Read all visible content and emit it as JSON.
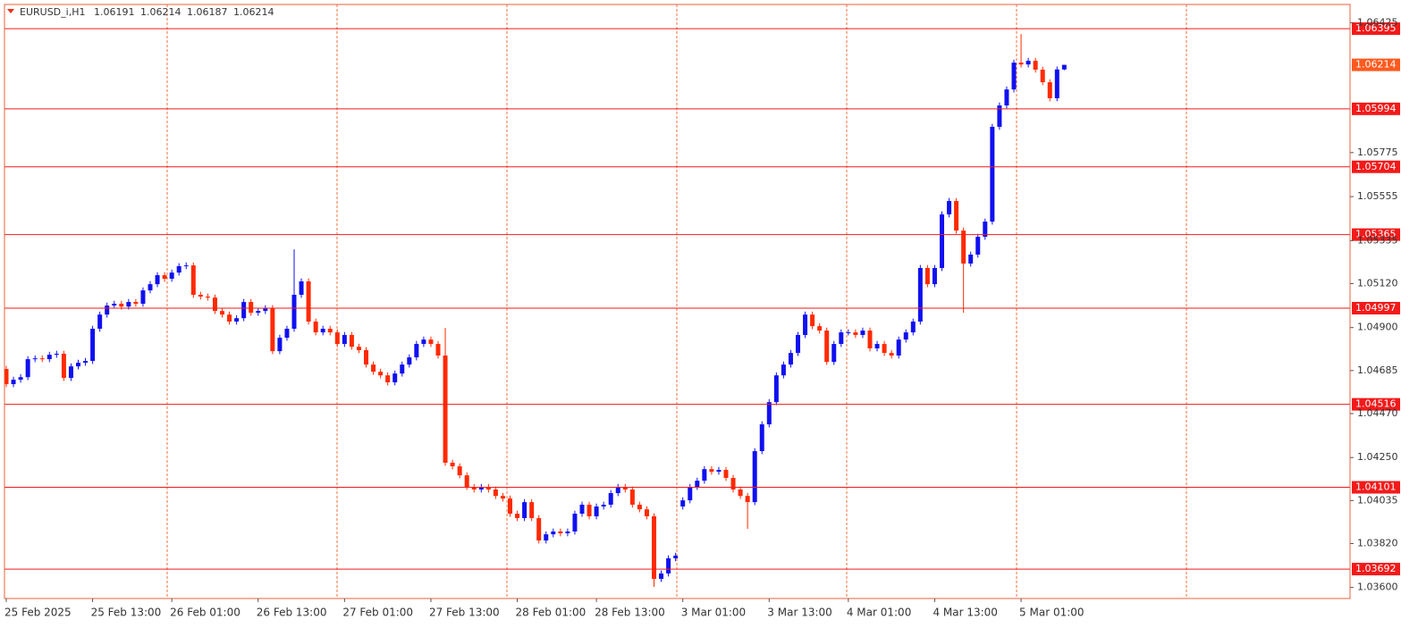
{
  "chart_data": {
    "type": "candlestick",
    "symbol": "EURUSD_i,H1",
    "bull_color": "#1010f0",
    "bear_color": "#ff2a00",
    "level_color": "#f21a1a",
    "last_price_color": "#ff5a1f",
    "separator_color": "#f0703c",
    "ylim": [
      1.03545,
      1.06516
    ],
    "yticks": [
      1.06425,
      1.05775,
      1.05555,
      1.05335,
      {
        "value": 1.0512,
        "label": "1.05120"
      },
      {
        "value": 1.049,
        "label": "1.04900"
      },
      1.04685,
      {
        "value": 1.0447,
        "label": "1.04470"
      },
      {
        "value": 1.0425,
        "label": "1.04250"
      },
      1.04035,
      {
        "value": 1.0382,
        "label": "1.03820"
      },
      {
        "value": 1.036,
        "label": "1.03600"
      }
    ],
    "levels": [
      1.06395,
      1.05994,
      1.05704,
      1.05365,
      1.04997,
      1.04516,
      1.04101,
      1.03692
    ],
    "categories": [
      "25 Feb 2025",
      null,
      null,
      null,
      null,
      null,
      null,
      null,
      null,
      null,
      null,
      null,
      "25 Feb 13:00",
      null,
      null,
      null,
      null,
      null,
      null,
      null,
      null,
      null,
      null,
      "26 Feb 01:00",
      null,
      null,
      null,
      null,
      null,
      null,
      null,
      null,
      null,
      null,
      null,
      "26 Feb 13:00",
      null,
      null,
      null,
      null,
      null,
      null,
      null,
      null,
      null,
      null,
      null,
      "27 Feb 01:00",
      null,
      null,
      null,
      null,
      null,
      null,
      null,
      null,
      null,
      null,
      null,
      "27 Feb 13:00",
      null,
      null,
      null,
      null,
      null,
      null,
      null,
      null,
      null,
      null,
      null,
      "28 Feb 01:00",
      null,
      null,
      null,
      null,
      null,
      null,
      null,
      null,
      null,
      null,
      "28 Feb 13:00",
      null,
      null,
      null,
      null,
      null,
      null,
      null,
      null,
      null,
      null,
      null,
      "3 Mar 01:00",
      null,
      null,
      null,
      null,
      null,
      null,
      null,
      null,
      null,
      null,
      null,
      "3 Mar 13:00",
      null,
      null,
      null,
      null,
      null,
      null,
      null,
      null,
      null,
      null,
      "4 Mar 01:00",
      null,
      null,
      null,
      null,
      null,
      null,
      null,
      null,
      null,
      null,
      null,
      "4 Mar 13:00",
      null,
      null,
      null,
      null,
      null,
      null,
      null,
      null,
      null,
      null,
      null,
      "5 Mar 01:00",
      null,
      null,
      null,
      null,
      null,
      null
    ],
    "open": [
      1.04693,
      1.04617,
      1.04639,
      1.04652,
      1.04742,
      1.04746,
      1.04742,
      1.04764,
      1.04769,
      1.04648,
      1.04706,
      1.04724,
      1.04733,
      1.04894,
      1.04965,
      1.0501,
      1.05019,
      1.05005,
      1.05028,
      1.05019,
      1.05086,
      1.05117,
      1.05162,
      1.05144,
      1.05175,
      1.05207,
      1.05211,
      1.05064,
      1.05055,
      1.0505,
      1.04983,
      1.04965,
      1.0493,
      1.04947,
      1.05028,
      1.04974,
      1.04983,
      1.04997,
      1.04782,
      1.04849,
      1.04894,
      1.05064,
      1.05131,
      1.0493,
      1.04876,
      1.04894,
      1.04876,
      1.04818,
      1.04863,
      1.04804,
      1.04787,
      1.04715,
      1.04679,
      1.04661,
      1.04626,
      1.0467,
      1.04715,
      1.04751,
      1.04818,
      1.0484,
      1.04818,
      1.0476,
      1.04224,
      1.04206,
      1.04161,
      1.04103,
      1.0409,
      1.04103,
      1.0409,
      1.04058,
      1.04045,
      1.03969,
      1.03947,
      1.04027,
      1.03947,
      1.03835,
      1.03866,
      1.0388,
      1.03871,
      1.0388,
      1.03969,
      1.04014,
      1.03956,
      1.04005,
      1.04014,
      1.04072,
      1.04103,
      1.0409,
      1.04014,
      1.03991,
      1.03956,
      1.03643,
      1.0367,
      1.03746,
      1.04005,
      1.04036,
      1.04103,
      1.04134,
      1.04192,
      1.04179,
      1.04188,
      1.04148,
      1.0409,
      1.04058,
      1.04027,
      1.04282,
      1.04416,
      1.04527,
      1.04661,
      1.04715,
      1.04773,
      1.04863,
      1.04965,
      1.04907,
      1.04885,
      1.04728,
      1.04818,
      1.04876,
      1.04876,
      1.04863,
      1.04885,
      1.04796,
      1.04818,
      1.04773,
      1.0476,
      1.0484,
      1.04876,
      1.0493,
      1.05198,
      1.05117,
      1.05198,
      1.05466,
      1.05533,
      1.05385,
      1.0522,
      1.05265,
      1.05354,
      1.0543,
      1.05904,
      1.06011,
      1.06091,
      1.06225,
      1.06216,
      1.06234,
      1.0619,
      1.06127,
      1.06047,
      1.06191
    ],
    "high": [
      1.04708,
      1.04654,
      1.04667,
      1.04757,
      1.04761,
      1.04761,
      1.04779,
      1.04784,
      1.04784,
      1.04721,
      1.04739,
      1.04748,
      1.04909,
      1.0498,
      1.05025,
      1.05034,
      1.05034,
      1.05043,
      1.05043,
      1.05101,
      1.05132,
      1.05177,
      1.05177,
      1.0519,
      1.05222,
      1.05226,
      1.05226,
      1.05079,
      1.0507,
      1.05065,
      1.04998,
      1.0498,
      1.04962,
      1.05043,
      1.05043,
      1.04998,
      1.05012,
      1.05012,
      1.04864,
      1.04909,
      1.05291,
      1.05146,
      1.05146,
      1.04945,
      1.04909,
      1.04909,
      1.04891,
      1.04878,
      1.04878,
      1.04819,
      1.04802,
      1.0473,
      1.04694,
      1.04676,
      1.04685,
      1.0473,
      1.04766,
      1.04833,
      1.04855,
      1.04855,
      1.04833,
      1.04898,
      1.04239,
      1.04221,
      1.04176,
      1.04118,
      1.04118,
      1.04118,
      1.04105,
      1.04073,
      1.0406,
      1.03984,
      1.04042,
      1.04042,
      1.03962,
      1.03881,
      1.03895,
      1.03895,
      1.03895,
      1.03984,
      1.04029,
      1.04029,
      1.0402,
      1.04029,
      1.04087,
      1.04118,
      1.04118,
      1.04105,
      1.04029,
      1.04006,
      1.03971,
      1.03685,
      1.03761,
      1.03774,
      1.04051,
      1.04118,
      1.04149,
      1.04207,
      1.04207,
      1.04203,
      1.04203,
      1.04163,
      1.04105,
      1.04073,
      1.04297,
      1.04431,
      1.04542,
      1.04676,
      1.0473,
      1.04788,
      1.04878,
      1.0498,
      1.0498,
      1.04922,
      1.049,
      1.04833,
      1.04891,
      1.04891,
      1.04891,
      1.049,
      1.049,
      1.04833,
      1.04833,
      1.04788,
      1.04855,
      1.04891,
      1.04945,
      1.05213,
      1.05213,
      1.05213,
      1.05481,
      1.05548,
      1.05548,
      1.054,
      1.0528,
      1.05369,
      1.05445,
      1.05919,
      1.06026,
      1.06106,
      1.0624,
      1.06368,
      1.06249,
      1.06249,
      1.06205,
      1.06142,
      1.06206,
      1.06214
    ],
    "low": [
      1.04602,
      1.04602,
      1.04624,
      1.04637,
      1.04727,
      1.04727,
      1.04727,
      1.04749,
      1.04633,
      1.04633,
      1.04691,
      1.04709,
      1.04718,
      1.04879,
      1.0495,
      1.04995,
      1.0499,
      1.0499,
      1.05004,
      1.05004,
      1.05071,
      1.05102,
      1.05129,
      1.05129,
      1.0516,
      1.05192,
      1.05049,
      1.0504,
      1.05035,
      1.04968,
      1.0495,
      1.04915,
      1.04915,
      1.04932,
      1.04959,
      1.04959,
      1.04968,
      1.04767,
      1.04767,
      1.04834,
      1.04879,
      1.05049,
      1.04915,
      1.04861,
      1.04861,
      1.04861,
      1.04803,
      1.04803,
      1.04789,
      1.04772,
      1.047,
      1.04664,
      1.04646,
      1.04611,
      1.04611,
      1.04655,
      1.047,
      1.04736,
      1.04803,
      1.04803,
      1.04745,
      1.04209,
      1.04191,
      1.04146,
      1.04088,
      1.04075,
      1.04075,
      1.04075,
      1.04043,
      1.0403,
      1.03954,
      1.03932,
      1.03932,
      1.03932,
      1.0382,
      1.0382,
      1.03851,
      1.03856,
      1.03856,
      1.03865,
      1.03954,
      1.03941,
      1.03941,
      1.0399,
      1.03999,
      1.04057,
      1.04075,
      1.03999,
      1.03976,
      1.03941,
      1.03603,
      1.03628,
      1.03655,
      1.03731,
      1.0399,
      1.04021,
      1.04088,
      1.04119,
      1.04164,
      1.04164,
      1.04133,
      1.04075,
      1.04043,
      1.03893,
      1.04012,
      1.04267,
      1.04401,
      1.04512,
      1.04646,
      1.047,
      1.04758,
      1.04848,
      1.04892,
      1.0487,
      1.04713,
      1.04713,
      1.04803,
      1.04861,
      1.04848,
      1.04848,
      1.04781,
      1.04781,
      1.04758,
      1.04745,
      1.04745,
      1.04825,
      1.04861,
      1.04915,
      1.05102,
      1.05102,
      1.05183,
      1.05451,
      1.0537,
      1.04974,
      1.05205,
      1.0525,
      1.05339,
      1.05415,
      1.05889,
      1.05996,
      1.06076,
      1.06201,
      1.06201,
      1.06175,
      1.06112,
      1.06032,
      1.06032,
      1.06187
    ],
    "close": [
      1.04617,
      1.04639,
      1.04652,
      1.04742,
      1.04746,
      1.04742,
      1.04764,
      1.04769,
      1.04648,
      1.04706,
      1.04724,
      1.04733,
      1.04894,
      1.04965,
      1.0501,
      1.05019,
      1.05005,
      1.05028,
      1.05019,
      1.05086,
      1.05117,
      1.05162,
      1.05144,
      1.05175,
      1.05207,
      1.05211,
      1.05064,
      1.05055,
      1.0505,
      1.04983,
      1.04965,
      1.0493,
      1.04947,
      1.05028,
      1.04974,
      1.04983,
      1.04997,
      1.04782,
      1.04849,
      1.04894,
      1.05064,
      1.05131,
      1.0493,
      1.04876,
      1.04894,
      1.04876,
      1.04818,
      1.04863,
      1.04804,
      1.04787,
      1.04715,
      1.04679,
      1.04661,
      1.04626,
      1.0467,
      1.04715,
      1.04751,
      1.04818,
      1.0484,
      1.04818,
      1.0476,
      1.04224,
      1.04206,
      1.04161,
      1.04103,
      1.0409,
      1.04103,
      1.0409,
      1.04058,
      1.04045,
      1.03969,
      1.03947,
      1.04027,
      1.03947,
      1.03835,
      1.03866,
      1.0388,
      1.03871,
      1.0388,
      1.03969,
      1.04014,
      1.03956,
      1.04005,
      1.04014,
      1.04072,
      1.04103,
      1.0409,
      1.04014,
      1.03991,
      1.03956,
      1.03643,
      1.0367,
      1.03746,
      1.03759,
      1.04036,
      1.04103,
      1.04134,
      1.04192,
      1.04179,
      1.04188,
      1.04148,
      1.0409,
      1.04058,
      1.04027,
      1.04282,
      1.04416,
      1.04527,
      1.04661,
      1.04715,
      1.04773,
      1.04863,
      1.04965,
      1.04907,
      1.04885,
      1.04728,
      1.04818,
      1.04876,
      1.04876,
      1.04863,
      1.04885,
      1.04796,
      1.04818,
      1.04773,
      1.0476,
      1.0484,
      1.04876,
      1.0493,
      1.05198,
      1.05117,
      1.05198,
      1.05466,
      1.05533,
      1.05385,
      1.0522,
      1.05265,
      1.05354,
      1.0543,
      1.05904,
      1.06011,
      1.06091,
      1.06225,
      1.06216,
      1.06234,
      1.0619,
      1.06127,
      1.06047,
      1.06191,
      1.06214
    ]
  }
}
